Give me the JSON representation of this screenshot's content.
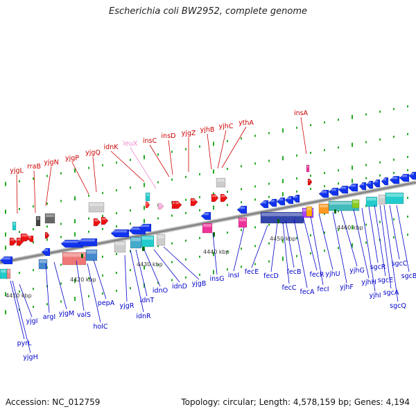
{
  "title": "Escherichia coli BW2952, complete genome",
  "footer": {
    "accession": "Accession: NC_012759",
    "topology": "Topology: circular; Length: 4,578,159 bp; Genes: 4,194"
  },
  "colors": {
    "top_label": "#cc0000",
    "top_label_pink": "#ee88cc",
    "bottom_label": "#0000cc",
    "backbone": "#888888",
    "dots": "#22aa22"
  },
  "kbp_labels": [
    {
      "id": "kbp-4410",
      "text": "4410 kbp"
    },
    {
      "id": "kbp-4420",
      "text": "4420 kbp"
    },
    {
      "id": "kbp-4430",
      "text": "4430 kbp"
    },
    {
      "id": "kbp-4440",
      "text": "4440 kbp"
    },
    {
      "id": "kbp-4450",
      "text": "4450 kbp"
    },
    {
      "id": "kbp-4460",
      "text": "4460 kbp"
    }
  ],
  "top_genes": [
    {
      "id": "yjgL",
      "text": "yjgL"
    },
    {
      "id": "rraB",
      "text": "rraB"
    },
    {
      "id": "yjgN",
      "text": "yjgN"
    },
    {
      "id": "yjgP",
      "text": "yjgP"
    },
    {
      "id": "yjgQ",
      "text": "yjgQ"
    },
    {
      "id": "idnK",
      "text": "idnK"
    },
    {
      "id": "leuX",
      "text": "leuX"
    },
    {
      "id": "insC",
      "text": "insC"
    },
    {
      "id": "insD",
      "text": "insD"
    },
    {
      "id": "yjgZ",
      "text": "yjgZ"
    },
    {
      "id": "yjhB",
      "text": "yjhB"
    },
    {
      "id": "yjhC",
      "text": "yjhC"
    },
    {
      "id": "ythA",
      "text": "ythA"
    },
    {
      "id": "insA",
      "text": "insA"
    }
  ],
  "bottom_genes": [
    {
      "id": "pyrL",
      "text": "pyrL"
    },
    {
      "id": "yjgH",
      "text": "yjgH"
    },
    {
      "id": "yjgI",
      "text": "yjgI"
    },
    {
      "id": "argI",
      "text": "argI"
    },
    {
      "id": "yjgM",
      "text": "yjgM"
    },
    {
      "id": "valS",
      "text": "valS"
    },
    {
      "id": "holC",
      "text": "holC"
    },
    {
      "id": "pepA",
      "text": "pepA"
    },
    {
      "id": "yjgR",
      "text": "yjgR"
    },
    {
      "id": "idnR",
      "text": "idnR"
    },
    {
      "id": "idnT",
      "text": "idnT"
    },
    {
      "id": "idnO",
      "text": "idnO"
    },
    {
      "id": "idnD",
      "text": "idnD"
    },
    {
      "id": "yjgB",
      "text": "yjgB"
    },
    {
      "id": "insG",
      "text": "insG"
    },
    {
      "id": "insI",
      "text": "insI"
    },
    {
      "id": "fecE",
      "text": "fecE"
    },
    {
      "id": "fecD",
      "text": "fecD"
    },
    {
      "id": "fecC",
      "text": "fecC"
    },
    {
      "id": "fecB",
      "text": "fecB"
    },
    {
      "id": "fecA",
      "text": "fecA"
    },
    {
      "id": "fecR",
      "text": "fecR"
    },
    {
      "id": "fecI",
      "text": "fecI"
    },
    {
      "id": "yjhU",
      "text": "yjhU"
    },
    {
      "id": "yjhF",
      "text": "yjhF"
    },
    {
      "id": "yjhG",
      "text": "yjhG"
    },
    {
      "id": "yjhH",
      "text": "yjhH"
    },
    {
      "id": "yjhI",
      "text": "yjhI"
    },
    {
      "id": "sgcR",
      "text": "sgcR"
    },
    {
      "id": "sgcE",
      "text": "sgcE"
    },
    {
      "id": "sgcA",
      "text": "sgcA"
    },
    {
      "id": "sgcQ",
      "text": "sgcQ"
    },
    {
      "id": "sgcC",
      "text": "sgcC"
    },
    {
      "id": "sgcB",
      "text": "sgcB"
    }
  ]
}
